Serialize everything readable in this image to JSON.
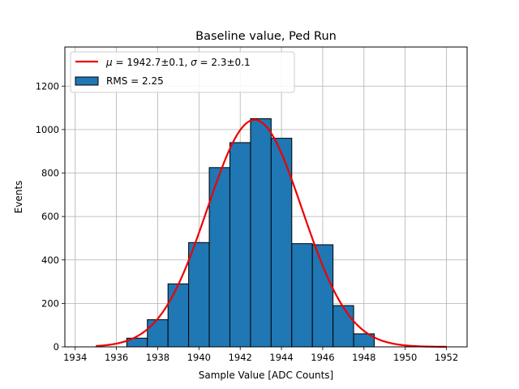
{
  "chart_data": {
    "type": "bar",
    "title": "Baseline value, Ped Run",
    "xlabel": "Sample Value [ADC Counts]",
    "ylabel": "Events",
    "xlim": [
      1933.5,
      1953.0
    ],
    "ylim": [
      0,
      1380
    ],
    "xticks": [
      "1934",
      "1936",
      "1938",
      "1940",
      "1942",
      "1944",
      "1946",
      "1948",
      "1950",
      "1952"
    ],
    "yticks": [
      "0",
      "200",
      "400",
      "600",
      "800",
      "1000",
      "1200"
    ],
    "grid": true,
    "legend_position": "top-left",
    "histogram": {
      "name": "RMS = 2.25",
      "color": "#1f77b4",
      "edge_color": "#000000",
      "bin_edges": [
        1936.5,
        1937.5,
        1938.5,
        1939.5,
        1940.5,
        1941.5,
        1942.5,
        1943.5,
        1944.5,
        1945.5,
        1946.5,
        1947.5,
        1948.5
      ],
      "values": [
        40,
        125,
        290,
        480,
        825,
        940,
        1050,
        960,
        475,
        470,
        190,
        60
      ]
    },
    "fit": {
      "name_text": "= 1942.7±0.1,",
      "name_text2": "= 2.3±0.1",
      "mu_symbol": "μ",
      "sigma_symbol": "σ",
      "color": "#ee0000",
      "mu": 1942.7,
      "sigma": 2.3,
      "amplitude": 1045,
      "x_range": [
        1935,
        1952
      ]
    }
  }
}
